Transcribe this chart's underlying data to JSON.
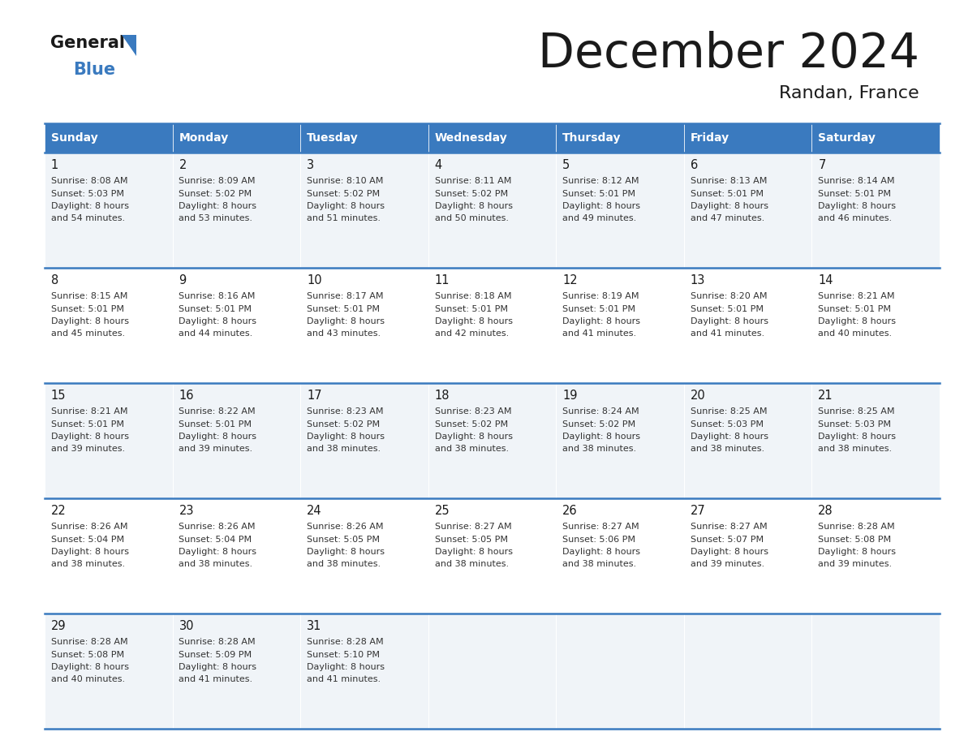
{
  "title": "December 2024",
  "subtitle": "Randan, France",
  "header_color": "#3a7abf",
  "header_text_color": "#ffffff",
  "border_color": "#3a7abf",
  "text_color": "#333333",
  "days_of_week": [
    "Sunday",
    "Monday",
    "Tuesday",
    "Wednesday",
    "Thursday",
    "Friday",
    "Saturday"
  ],
  "weeks": [
    [
      {
        "day": 1,
        "sunrise": "8:08 AM",
        "sunset": "5:03 PM",
        "daylight_h": "8 hours",
        "daylight_m": "54 minutes."
      },
      {
        "day": 2,
        "sunrise": "8:09 AM",
        "sunset": "5:02 PM",
        "daylight_h": "8 hours",
        "daylight_m": "53 minutes."
      },
      {
        "day": 3,
        "sunrise": "8:10 AM",
        "sunset": "5:02 PM",
        "daylight_h": "8 hours",
        "daylight_m": "51 minutes."
      },
      {
        "day": 4,
        "sunrise": "8:11 AM",
        "sunset": "5:02 PM",
        "daylight_h": "8 hours",
        "daylight_m": "50 minutes."
      },
      {
        "day": 5,
        "sunrise": "8:12 AM",
        "sunset": "5:01 PM",
        "daylight_h": "8 hours",
        "daylight_m": "49 minutes."
      },
      {
        "day": 6,
        "sunrise": "8:13 AM",
        "sunset": "5:01 PM",
        "daylight_h": "8 hours",
        "daylight_m": "47 minutes."
      },
      {
        "day": 7,
        "sunrise": "8:14 AM",
        "sunset": "5:01 PM",
        "daylight_h": "8 hours",
        "daylight_m": "46 minutes."
      }
    ],
    [
      {
        "day": 8,
        "sunrise": "8:15 AM",
        "sunset": "5:01 PM",
        "daylight_h": "8 hours",
        "daylight_m": "45 minutes."
      },
      {
        "day": 9,
        "sunrise": "8:16 AM",
        "sunset": "5:01 PM",
        "daylight_h": "8 hours",
        "daylight_m": "44 minutes."
      },
      {
        "day": 10,
        "sunrise": "8:17 AM",
        "sunset": "5:01 PM",
        "daylight_h": "8 hours",
        "daylight_m": "43 minutes."
      },
      {
        "day": 11,
        "sunrise": "8:18 AM",
        "sunset": "5:01 PM",
        "daylight_h": "8 hours",
        "daylight_m": "42 minutes."
      },
      {
        "day": 12,
        "sunrise": "8:19 AM",
        "sunset": "5:01 PM",
        "daylight_h": "8 hours",
        "daylight_m": "41 minutes."
      },
      {
        "day": 13,
        "sunrise": "8:20 AM",
        "sunset": "5:01 PM",
        "daylight_h": "8 hours",
        "daylight_m": "41 minutes."
      },
      {
        "day": 14,
        "sunrise": "8:21 AM",
        "sunset": "5:01 PM",
        "daylight_h": "8 hours",
        "daylight_m": "40 minutes."
      }
    ],
    [
      {
        "day": 15,
        "sunrise": "8:21 AM",
        "sunset": "5:01 PM",
        "daylight_h": "8 hours",
        "daylight_m": "39 minutes."
      },
      {
        "day": 16,
        "sunrise": "8:22 AM",
        "sunset": "5:01 PM",
        "daylight_h": "8 hours",
        "daylight_m": "39 minutes."
      },
      {
        "day": 17,
        "sunrise": "8:23 AM",
        "sunset": "5:02 PM",
        "daylight_h": "8 hours",
        "daylight_m": "38 minutes."
      },
      {
        "day": 18,
        "sunrise": "8:23 AM",
        "sunset": "5:02 PM",
        "daylight_h": "8 hours",
        "daylight_m": "38 minutes."
      },
      {
        "day": 19,
        "sunrise": "8:24 AM",
        "sunset": "5:02 PM",
        "daylight_h": "8 hours",
        "daylight_m": "38 minutes."
      },
      {
        "day": 20,
        "sunrise": "8:25 AM",
        "sunset": "5:03 PM",
        "daylight_h": "8 hours",
        "daylight_m": "38 minutes."
      },
      {
        "day": 21,
        "sunrise": "8:25 AM",
        "sunset": "5:03 PM",
        "daylight_h": "8 hours",
        "daylight_m": "38 minutes."
      }
    ],
    [
      {
        "day": 22,
        "sunrise": "8:26 AM",
        "sunset": "5:04 PM",
        "daylight_h": "8 hours",
        "daylight_m": "38 minutes."
      },
      {
        "day": 23,
        "sunrise": "8:26 AM",
        "sunset": "5:04 PM",
        "daylight_h": "8 hours",
        "daylight_m": "38 minutes."
      },
      {
        "day": 24,
        "sunrise": "8:26 AM",
        "sunset": "5:05 PM",
        "daylight_h": "8 hours",
        "daylight_m": "38 minutes."
      },
      {
        "day": 25,
        "sunrise": "8:27 AM",
        "sunset": "5:05 PM",
        "daylight_h": "8 hours",
        "daylight_m": "38 minutes."
      },
      {
        "day": 26,
        "sunrise": "8:27 AM",
        "sunset": "5:06 PM",
        "daylight_h": "8 hours",
        "daylight_m": "38 minutes."
      },
      {
        "day": 27,
        "sunrise": "8:27 AM",
        "sunset": "5:07 PM",
        "daylight_h": "8 hours",
        "daylight_m": "39 minutes."
      },
      {
        "day": 28,
        "sunrise": "8:28 AM",
        "sunset": "5:08 PM",
        "daylight_h": "8 hours",
        "daylight_m": "39 minutes."
      }
    ],
    [
      {
        "day": 29,
        "sunrise": "8:28 AM",
        "sunset": "5:08 PM",
        "daylight_h": "8 hours",
        "daylight_m": "40 minutes."
      },
      {
        "day": 30,
        "sunrise": "8:28 AM",
        "sunset": "5:09 PM",
        "daylight_h": "8 hours",
        "daylight_m": "41 minutes."
      },
      {
        "day": 31,
        "sunrise": "8:28 AM",
        "sunset": "5:10 PM",
        "daylight_h": "8 hours",
        "daylight_m": "41 minutes."
      },
      null,
      null,
      null,
      null
    ]
  ],
  "logo_general_color": "#1a1a1a",
  "logo_blue_color": "#3a7abf",
  "logo_triangle_color": "#3a7abf"
}
